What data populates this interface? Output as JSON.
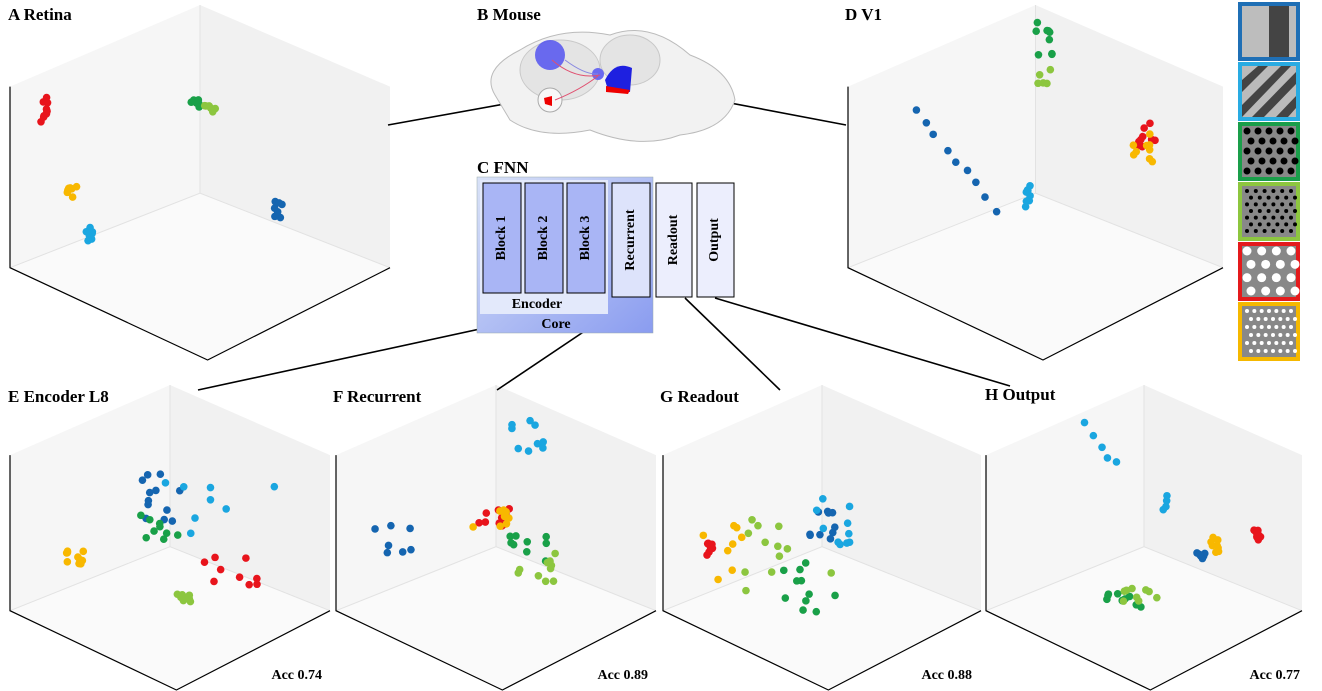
{
  "panels": {
    "a": "A  Retina",
    "b": "B  Mouse",
    "c": "C  FNN",
    "d": "D  V1",
    "e": "E  Encoder L8",
    "f": "F  Recurrent",
    "g": "G  Readout",
    "h": "H  Output"
  },
  "fnn": {
    "blocks": [
      "Block 1",
      "Block 2",
      "Block 3"
    ],
    "recurrent": "Recurrent",
    "readout": "Readout",
    "output": "Output",
    "encoder": "Encoder",
    "core": "Core"
  },
  "accuracy": {
    "e": "Acc 0.74",
    "f": "Acc 0.89",
    "g": "Acc 0.88",
    "h": "Acc 0.77"
  }
}
